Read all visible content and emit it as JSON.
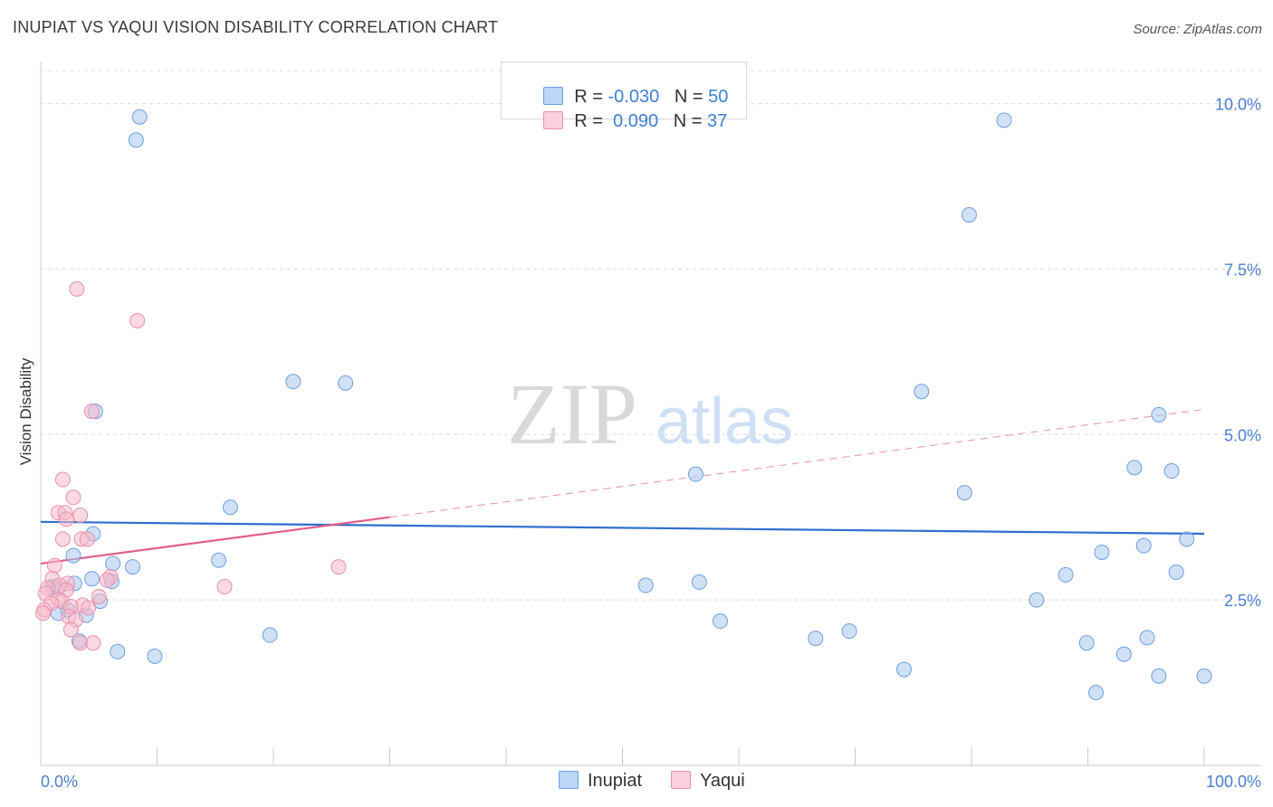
{
  "title": "INUPIAT VS YAQUI VISION DISABILITY CORRELATION CHART",
  "source": "Source: ZipAtlas.com",
  "watermark": {
    "zip": "ZIP",
    "atlas": "atlas"
  },
  "legend": {
    "rows": [
      {
        "r_label": "R = ",
        "r_value": "-0.030",
        "n_label": "N = ",
        "n_value": "50"
      },
      {
        "r_label": "R = ",
        "r_value": " 0.090",
        "n_label": "N = ",
        "n_value": "37"
      }
    ],
    "bottom": [
      "Inupiat",
      "Yaqui"
    ]
  },
  "colors": {
    "inupiat_fill": "#a9c8ee",
    "inupiat_stroke": "#6d9ee0",
    "inupiat_line": "#2f6fd0",
    "yaqui_fill": "#f6b9cb",
    "yaqui_stroke": "#ea8fab",
    "yaqui_line": "#e0608a",
    "grid": "#dddddd",
    "axis_label": "#4a7fd0"
  },
  "chart_data": {
    "type": "scatter",
    "title": "INUPIAT VS YAQUI VISION DISABILITY CORRELATION CHART",
    "xlabel": "",
    "ylabel": "Vision Disability",
    "xlim": [
      0,
      100
    ],
    "ylim": [
      0,
      10.5
    ],
    "x_tick_labels": [
      "0.0%",
      "100.0%"
    ],
    "y_ticks": [
      2.5,
      5.0,
      7.5,
      10.0
    ],
    "y_tick_labels": [
      "2.5%",
      "5.0%",
      "7.5%",
      "10.0%"
    ],
    "grid": true,
    "series": [
      {
        "name": "Inupiat",
        "points": [
          [
            8.5,
            9.8
          ],
          [
            8.2,
            9.45
          ],
          [
            82.8,
            9.75
          ],
          [
            79.8,
            8.32
          ],
          [
            21.7,
            5.8
          ],
          [
            26.2,
            5.78
          ],
          [
            75.7,
            5.65
          ],
          [
            4.7,
            5.35
          ],
          [
            96.1,
            5.3
          ],
          [
            94.0,
            4.5
          ],
          [
            97.2,
            4.45
          ],
          [
            56.3,
            4.4
          ],
          [
            79.4,
            4.12
          ],
          [
            16.3,
            3.9
          ],
          [
            4.5,
            3.5
          ],
          [
            98.5,
            3.42
          ],
          [
            94.8,
            3.32
          ],
          [
            91.2,
            3.22
          ],
          [
            2.8,
            3.17
          ],
          [
            6.2,
            3.05
          ],
          [
            7.9,
            3.0
          ],
          [
            15.3,
            3.1
          ],
          [
            4.4,
            2.82
          ],
          [
            6.1,
            2.78
          ],
          [
            88.1,
            2.88
          ],
          [
            97.6,
            2.92
          ],
          [
            2.9,
            2.75
          ],
          [
            1.0,
            2.7
          ],
          [
            1.5,
            2.68
          ],
          [
            52.0,
            2.72
          ],
          [
            56.6,
            2.77
          ],
          [
            85.6,
            2.5
          ],
          [
            5.1,
            2.48
          ],
          [
            2.3,
            2.35
          ],
          [
            1.5,
            2.3
          ],
          [
            3.9,
            2.27
          ],
          [
            58.4,
            2.18
          ],
          [
            19.7,
            1.97
          ],
          [
            69.5,
            2.03
          ],
          [
            66.6,
            1.92
          ],
          [
            3.3,
            1.88
          ],
          [
            89.9,
            1.85
          ],
          [
            95.1,
            1.93
          ],
          [
            93.1,
            1.68
          ],
          [
            6.6,
            1.72
          ],
          [
            9.8,
            1.65
          ],
          [
            74.2,
            1.45
          ],
          [
            100.0,
            1.35
          ],
          [
            96.1,
            1.35
          ],
          [
            90.7,
            1.1
          ]
        ]
      },
      {
        "name": "Yaqui",
        "points": [
          [
            3.1,
            7.2
          ],
          [
            8.3,
            6.72
          ],
          [
            4.4,
            5.35
          ],
          [
            1.9,
            4.32
          ],
          [
            2.8,
            4.05
          ],
          [
            1.5,
            3.82
          ],
          [
            2.1,
            3.82
          ],
          [
            3.4,
            3.78
          ],
          [
            2.2,
            3.72
          ],
          [
            3.5,
            3.42
          ],
          [
            1.9,
            3.42
          ],
          [
            4.0,
            3.42
          ],
          [
            25.6,
            3.0
          ],
          [
            1.2,
            3.02
          ],
          [
            6.0,
            2.85
          ],
          [
            1.0,
            2.82
          ],
          [
            5.7,
            2.8
          ],
          [
            2.3,
            2.75
          ],
          [
            1.6,
            2.72
          ],
          [
            0.6,
            2.68
          ],
          [
            15.8,
            2.7
          ],
          [
            2.2,
            2.65
          ],
          [
            0.4,
            2.6
          ],
          [
            1.5,
            2.5
          ],
          [
            1.8,
            2.48
          ],
          [
            5.0,
            2.55
          ],
          [
            0.9,
            2.45
          ],
          [
            3.6,
            2.42
          ],
          [
            2.6,
            2.4
          ],
          [
            4.1,
            2.38
          ],
          [
            0.3,
            2.35
          ],
          [
            2.4,
            2.25
          ],
          [
            3.0,
            2.2
          ],
          [
            2.6,
            2.05
          ],
          [
            3.4,
            1.85
          ],
          [
            4.5,
            1.85
          ],
          [
            0.2,
            2.3
          ]
        ]
      }
    ],
    "trend_lines": [
      {
        "series": "Inupiat",
        "x": [
          0,
          100
        ],
        "y": [
          3.68,
          3.5
        ],
        "style": "solid"
      },
      {
        "series": "Yaqui",
        "x": [
          0,
          30
        ],
        "y": [
          3.05,
          3.75
        ],
        "style": "solid"
      },
      {
        "series": "Yaqui",
        "x": [
          30,
          100
        ],
        "y": [
          3.75,
          5.38
        ],
        "style": "dashed"
      }
    ]
  }
}
